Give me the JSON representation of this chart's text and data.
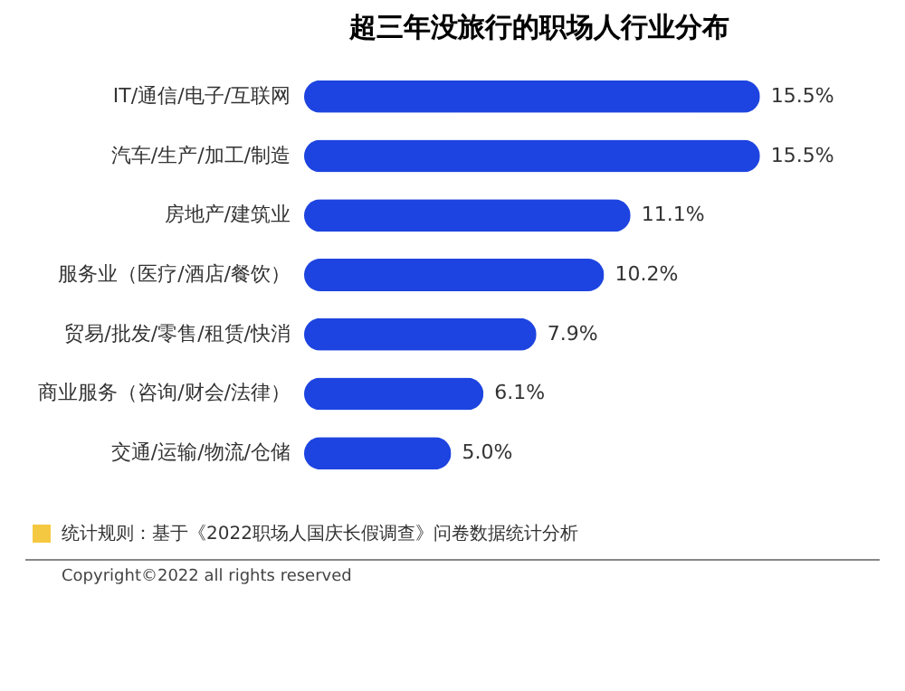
{
  "chart_data": {
    "type": "bar",
    "orientation": "horizontal",
    "title": "超三年没旅行的职场人行业分布",
    "categories": [
      "IT/通信/电子/互联网",
      "汽车/生产/加工/制造",
      "房地产/建筑业",
      "服务业（医疗/酒店/餐饮）",
      "贸易/批发/零售/租赁/快消",
      "商业服务（咨询/财会/法律）",
      "交通/运输/物流/仓储"
    ],
    "values": [
      15.5,
      15.5,
      11.1,
      10.2,
      7.9,
      6.1,
      5.0
    ],
    "value_labels": [
      "15.5%",
      "15.5%",
      "11.1%",
      "10.2%",
      "7.9%",
      "6.1%",
      "5.0%"
    ],
    "color": "#1d44e0",
    "annotations": [
      "统计规则：基于《2022职场人国庆长假调查》问卷数据统计分析",
      "Copyright©2022 all rights reserved"
    ]
  }
}
